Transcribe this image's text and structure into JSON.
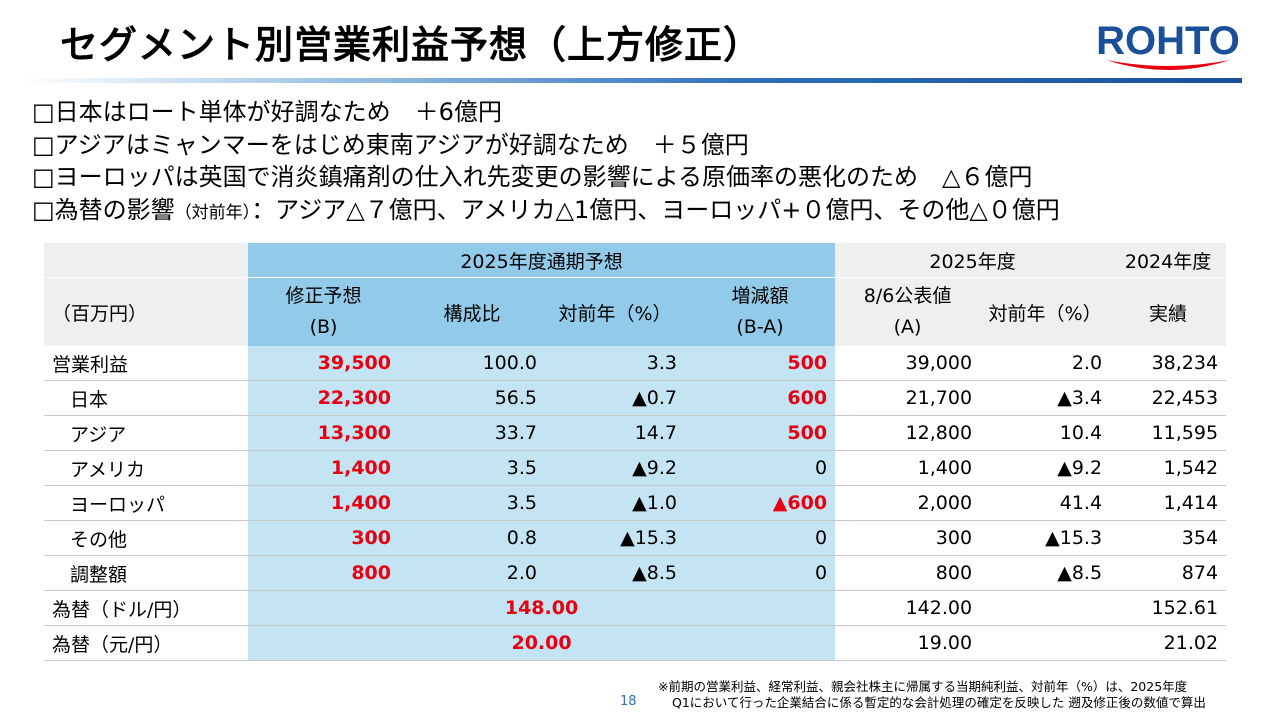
{
  "title": "セグメント別営業利益予想（上方修正）",
  "logo_text": "ROHTO",
  "colors": {
    "logo_red": "#e60012",
    "logo_blue": "#1a4f9a",
    "accent_red": "#e60012",
    "header_blue": "#92cbe9",
    "cell_blue": "#c5e4f3"
  },
  "bullets": [
    {
      "main": "□日本はロート単体が好調なため　＋6億円",
      "small": "",
      "rest": ""
    },
    {
      "main": "□アジアはミャンマーをはじめ東南アジアが好調なため　＋５億円",
      "small": "",
      "rest": ""
    },
    {
      "main": "□ヨーロッパは英国で消炎鎮痛剤の仕入れ先変更の影響による原価率の悪化のため　△６億円",
      "small": "",
      "rest": ""
    },
    {
      "main": "□為替の影響",
      "small": "（対前年）",
      "rest": "：アジア△７億円、アメリカ△1億円、ヨーロッパ+０億円、その他△０億円"
    }
  ],
  "table": {
    "group_forecast": "2025年度通期予想",
    "group_2025": "2025年度",
    "group_2024": "2024年度",
    "unit": "（百万円）",
    "col_revised_1": "修正予想",
    "col_revised_2": "(B)",
    "col_ratio": "構成比",
    "col_yoy": "対前年（%）",
    "col_diff_1": "増減額",
    "col_diff_2": "(B-A)",
    "col_pub_1": "8/6公表値",
    "col_pub_2": "(A)",
    "col_yoy2": "対前年（%）",
    "col_actual": "実績",
    "rows": [
      {
        "label": "営業利益",
        "revised": "39,500",
        "ratio": "100.0",
        "yoy": "3.3",
        "diff": "500",
        "pub": "39,000",
        "yoy2": "2.0",
        "actual": "38,234"
      },
      {
        "label": "日本",
        "revised": "22,300",
        "ratio": "56.5",
        "yoy": "▲0.7",
        "diff": "600",
        "pub": "21,700",
        "yoy2": "▲3.4",
        "actual": "22,453"
      },
      {
        "label": "アジア",
        "revised": "13,300",
        "ratio": "33.7",
        "yoy": "14.7",
        "diff": "500",
        "pub": "12,800",
        "yoy2": "10.4",
        "actual": "11,595"
      },
      {
        "label": "アメリカ",
        "revised": "1,400",
        "ratio": "3.5",
        "yoy": "▲9.2",
        "diff": "0",
        "pub": "1,400",
        "yoy2": "▲9.2",
        "actual": "1,542"
      },
      {
        "label": "ヨーロッパ",
        "revised": "1,400",
        "ratio": "3.5",
        "yoy": "▲1.0",
        "diff": "▲600",
        "pub": "2,000",
        "yoy2": "41.4",
        "actual": "1,414"
      },
      {
        "label": "その他",
        "revised": "300",
        "ratio": "0.8",
        "yoy": "▲15.3",
        "diff": "0",
        "pub": "300",
        "yoy2": "▲15.3",
        "actual": "354"
      },
      {
        "label": "調整額",
        "revised": "800",
        "ratio": "2.0",
        "yoy": "▲8.5",
        "diff": "0",
        "pub": "800",
        "yoy2": "▲8.5",
        "actual": "874"
      }
    ],
    "fx": [
      {
        "label": "為替（ドル/円）",
        "forecast": "148.00",
        "pub": "142.00",
        "actual": "152.61"
      },
      {
        "label": "為替（元/円）",
        "forecast": "20.00",
        "pub": "19.00",
        "actual": "21.02"
      }
    ]
  },
  "footnote_1": "※前期の営業利益、経常利益、親会社株主に帰属する当期純利益、対前年（%）は、2025年度",
  "footnote_2": "Q1において行った企業結合に係る暫定的な会計処理の確定を反映した 遡及修正後の数値で算出",
  "page_number": "18"
}
